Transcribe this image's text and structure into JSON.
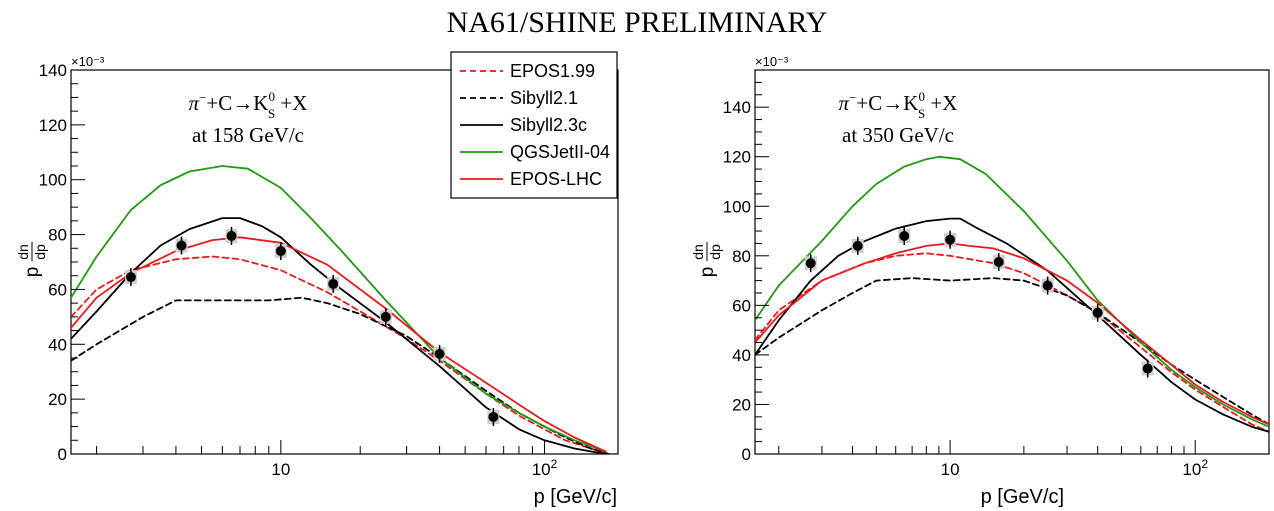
{
  "header": {
    "title": "NA61/SHINE PRELIMINARY"
  },
  "legend": {
    "placement": "top-center",
    "entries": [
      {
        "name": "EPOS1.99",
        "color": "#e8191c",
        "dash": true
      },
      {
        "name": "Sibyll2.1",
        "color": "#000000",
        "dash": true
      },
      {
        "name": "Sibyll2.3c",
        "color": "#000000",
        "dash": false
      },
      {
        "name": "QGSJetII-04",
        "color": "#1e9a0f",
        "dash": false
      },
      {
        "name": "EPOS-LHC",
        "color": "#e8191c",
        "dash": false
      }
    ]
  },
  "chart_data": [
    {
      "type": "line",
      "xlabel": "p [GeV/c]",
      "ylabel": "p dn/dp",
      "y_multiplier": "×10⁻³",
      "xscale": "log",
      "xlim": [
        1.6,
        190
      ],
      "ylim": [
        0,
        140
      ],
      "x_ticks": [
        {
          "value": 10,
          "label": "10"
        },
        {
          "value": 100,
          "label": "10²"
        }
      ],
      "y_ticks": [
        0,
        20,
        40,
        60,
        80,
        100,
        120,
        140
      ],
      "annotation": {
        "reaction": "π⁻+C→K⁰S +X",
        "energy": "at 158 GeV/c"
      },
      "points": {
        "x": [
          2.7,
          4.2,
          6.5,
          10.0,
          15.8,
          25.0,
          40.0,
          64.0
        ],
        "y": [
          64.5,
          76.0,
          79.5,
          74.0,
          62.0,
          50.0,
          36.5,
          13.5
        ]
      },
      "series": [
        {
          "name": "EPOS1.99",
          "x": [
            1.6,
            2,
            2.7,
            4,
            5.5,
            7,
            10,
            15,
            20,
            30,
            40,
            60,
            80,
            100,
            120,
            150,
            175
          ],
          "y": [
            50,
            60,
            67,
            71,
            72,
            71,
            67,
            59,
            52,
            42,
            34,
            22,
            14,
            9,
            5,
            2,
            0
          ]
        },
        {
          "name": "Sibyll2.1",
          "x": [
            1.6,
            2,
            3,
            4,
            5,
            7,
            9,
            12,
            15,
            20,
            30,
            40,
            60,
            80,
            100,
            120,
            150,
            175
          ],
          "y": [
            34,
            40,
            50,
            56,
            56,
            56,
            56,
            57,
            55,
            51,
            43,
            35,
            23,
            15,
            10,
            6,
            2,
            0
          ]
        },
        {
          "name": "Sibyll2.3c",
          "x": [
            1.6,
            2,
            2.7,
            3.5,
            4.5,
            6,
            7,
            8.5,
            10,
            13,
            17,
            25,
            40,
            60,
            80,
            100,
            130,
            170
          ],
          "y": [
            42,
            52,
            66,
            76,
            82,
            86,
            86,
            83,
            79,
            69,
            60,
            48,
            32,
            17,
            9,
            5,
            2,
            0
          ]
        },
        {
          "name": "QGSJetII-04",
          "x": [
            1.6,
            2,
            2.7,
            3.5,
            4.5,
            6,
            7.5,
            10,
            13,
            17,
            25,
            40,
            60,
            80,
            100,
            130,
            170
          ],
          "y": [
            57,
            72,
            89,
            98,
            103,
            105,
            104,
            97,
            86,
            74,
            56,
            35,
            22,
            15,
            10,
            5,
            1
          ]
        },
        {
          "name": "EPOS-LHC",
          "x": [
            1.6,
            2,
            2.7,
            4,
            5.5,
            7,
            10,
            15,
            25,
            40,
            60,
            80,
            100,
            130,
            170
          ],
          "y": [
            46,
            57,
            66,
            74,
            78,
            79,
            77,
            69,
            53,
            37,
            26,
            18,
            12,
            6,
            1
          ]
        }
      ]
    },
    {
      "type": "line",
      "xlabel": "p [GeV/c]",
      "ylabel": "p dn/dp",
      "y_multiplier": "×10⁻³",
      "xscale": "log",
      "xlim": [
        1.6,
        200
      ],
      "ylim": [
        0,
        155
      ],
      "x_ticks": [
        {
          "value": 10,
          "label": "10"
        },
        {
          "value": 100,
          "label": "10²"
        }
      ],
      "y_ticks": [
        0,
        20,
        40,
        60,
        80,
        100,
        120,
        140
      ],
      "annotation": {
        "reaction": "π⁻+C→K⁰S +X",
        "energy": "at 350 GeV/c"
      },
      "points": {
        "x": [
          2.7,
          4.2,
          6.5,
          10.0,
          15.8,
          25.0,
          40.0,
          64.0
        ],
        "y": [
          77.0,
          84.0,
          88.0,
          86.5,
          77.5,
          68.0,
          57.0,
          34.5
        ]
      },
      "series": [
        {
          "name": "EPOS1.99",
          "x": [
            1.6,
            2,
            3,
            4.5,
            6,
            8,
            10,
            15,
            20,
            30,
            40,
            60,
            80,
            100,
            130,
            170,
            200
          ],
          "y": [
            46,
            58,
            70,
            77,
            80,
            81,
            80,
            77,
            73,
            64,
            57,
            43,
            33,
            26,
            19,
            12,
            9
          ]
        },
        {
          "name": "Sibyll2.1",
          "x": [
            1.6,
            2,
            3,
            4,
            5,
            7,
            10,
            15,
            20,
            30,
            40,
            60,
            80,
            100,
            130,
            170,
            200
          ],
          "y": [
            40,
            47,
            58,
            65,
            70,
            71,
            70,
            71,
            70,
            64,
            57,
            45,
            36,
            30,
            23,
            16,
            12
          ]
        },
        {
          "name": "Sibyll2.3c",
          "x": [
            1.6,
            2,
            2.7,
            3.5,
            4.5,
            6,
            8,
            10,
            11,
            13,
            17,
            25,
            40,
            60,
            80,
            100,
            130,
            170,
            200
          ],
          "y": [
            40,
            54,
            70,
            80,
            86,
            91,
            94,
            95,
            95,
            91,
            85,
            74,
            56,
            40,
            29,
            22,
            16,
            11,
            9
          ]
        },
        {
          "name": "QGSJetII-04",
          "x": [
            1.6,
            2,
            3,
            4,
            5,
            6.5,
            8,
            9,
            11,
            14,
            20,
            30,
            40,
            60,
            80,
            100,
            130,
            170,
            200
          ],
          "y": [
            54,
            68,
            86,
            100,
            109,
            116,
            119,
            120,
            119,
            113,
            98,
            78,
            62,
            45,
            34,
            27,
            20,
            14,
            11
          ]
        },
        {
          "name": "EPOS-LHC",
          "x": [
            1.6,
            2,
            3,
            4.5,
            6,
            8,
            10,
            12,
            15,
            20,
            30,
            40,
            60,
            80,
            100,
            130,
            170,
            200
          ],
          "y": [
            45,
            56,
            70,
            77,
            81,
            84,
            85,
            84,
            83,
            79,
            70,
            61,
            46,
            36,
            28,
            21,
            15,
            12
          ]
        }
      ]
    }
  ]
}
